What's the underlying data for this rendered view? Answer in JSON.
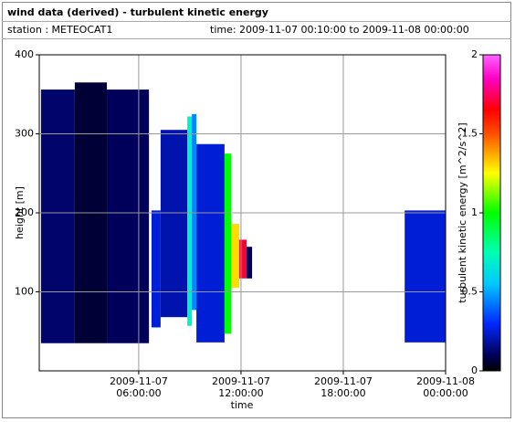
{
  "chart_data": {
    "type": "heatmap",
    "title": "wind data (derived) - turbulent kinetic energy",
    "station": "station : METEOCAT1",
    "time_range": "time: 2009-11-07 00:10:00 to 2009-11-08 00:00:00",
    "x_label": "time",
    "y_label": "height [m]",
    "colorbar_label": "turbulent kinetic energy [m^2/s^2]",
    "xlim": [
      "2009-11-07 00:10:00",
      "2009-11-08 00:00:00"
    ],
    "xticks": [
      "2009-11-07 06:00:00",
      "2009-11-07 12:00:00",
      "2009-11-07 18:00:00",
      "2009-11-08 00:00:00"
    ],
    "ylim": [
      0,
      400
    ],
    "yticks": [
      100,
      200,
      300,
      400
    ],
    "clim": [
      0,
      2
    ],
    "cticks": [
      0,
      0.5,
      1,
      1.5,
      2
    ],
    "grid": true,
    "colormap": [
      {
        "value": 0,
        "color": "#000000"
      },
      {
        "value": 0.1,
        "color": "#00005a"
      },
      {
        "value": 0.3,
        "color": "#0028ff"
      },
      {
        "value": 0.55,
        "color": "#00c8ff"
      },
      {
        "value": 0.75,
        "color": "#00ffb4"
      },
      {
        "value": 1,
        "color": "#00ff00"
      },
      {
        "value": 1.25,
        "color": "#ffff00"
      },
      {
        "value": 1.5,
        "color": "#ff5000"
      },
      {
        "value": 1.65,
        "color": "#ff0000"
      },
      {
        "value": 1.85,
        "color": "#ff00c8"
      },
      {
        "value": 2,
        "color": "#ff64ff"
      }
    ],
    "cells": [
      {
        "x0": "2009-11-07 00:16:00",
        "x1": "2009-11-07 02:15:00",
        "y0": 35,
        "y1": 356,
        "value": 0.12
      },
      {
        "x0": "2009-11-07 02:15:00",
        "x1": "2009-11-07 04:08:00",
        "y0": 35,
        "y1": 365,
        "value": 0.06
      },
      {
        "x0": "2009-11-07 04:08:00",
        "x1": "2009-11-07 06:36:00",
        "y0": 35,
        "y1": 356,
        "value": 0.1
      },
      {
        "x0": "2009-11-07 06:45:00",
        "x1": "2009-11-07 07:17:00",
        "y0": 55,
        "y1": 203,
        "value": 0.25
      },
      {
        "x0": "2009-11-07 07:17:00",
        "x1": "2009-11-07 08:51:00",
        "y0": 68,
        "y1": 305,
        "value": 0.2
      },
      {
        "x0": "2009-11-07 08:51:00",
        "x1": "2009-11-07 09:07:00",
        "y0": 57,
        "y1": 322,
        "value": 0.7
      },
      {
        "x0": "2009-11-07 09:07:00",
        "x1": "2009-11-07 09:23:00",
        "y0": 77,
        "y1": 325,
        "value": 0.45
      },
      {
        "x0": "2009-11-07 09:23:00",
        "x1": "2009-11-07 11:02:00",
        "y0": 36,
        "y1": 287,
        "value": 0.25
      },
      {
        "x0": "2009-11-07 11:02:00",
        "x1": "2009-11-07 11:25:00",
        "y0": 47,
        "y1": 275,
        "value": 1.0
      },
      {
        "x0": "2009-11-07 11:25:00",
        "x1": "2009-11-07 11:54:00",
        "y0": 105,
        "y1": 186,
        "value": 1.3
      },
      {
        "x0": "2009-11-07 11:54:00",
        "x1": "2009-11-07 12:20:00",
        "y0": 117,
        "y1": 166,
        "value": 1.7
      },
      {
        "x0": "2009-11-07 12:20:00",
        "x1": "2009-11-07 12:39:00",
        "y0": 117,
        "y1": 157,
        "value": 0.1
      },
      {
        "x0": "2009-11-07 21:36:00",
        "x1": "2009-11-08 00:00:00",
        "y0": 36,
        "y1": 203,
        "value": 0.25
      }
    ]
  }
}
